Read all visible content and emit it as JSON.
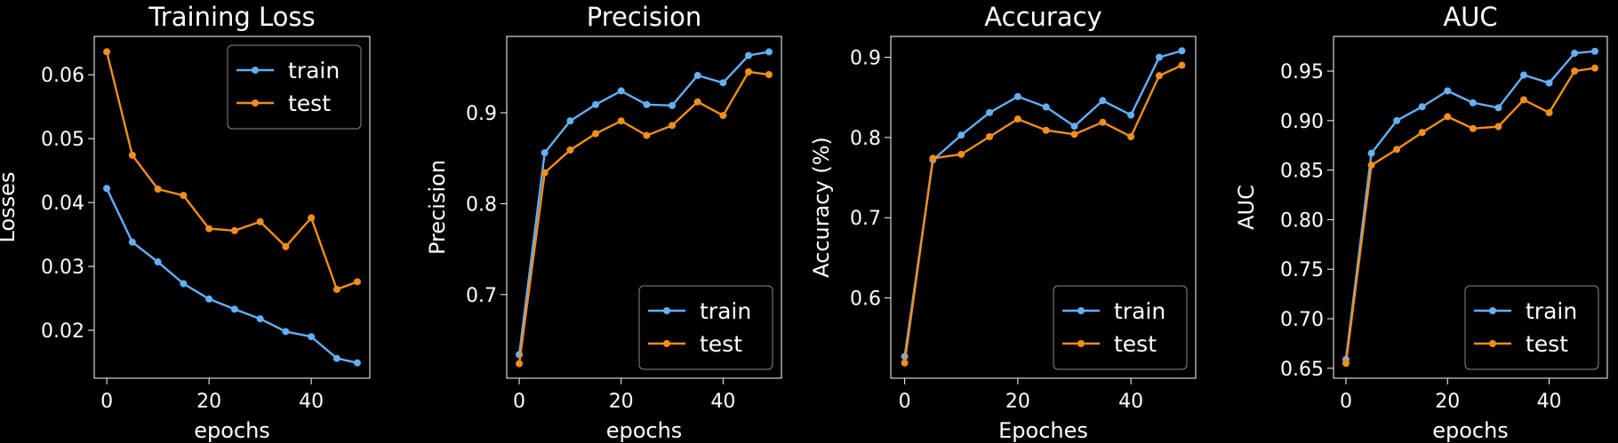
{
  "chart_data": [
    {
      "type": "line",
      "title": "Training Loss",
      "xlabel": "epochs",
      "ylabel": "Losses",
      "x": [
        0,
        5,
        10,
        15,
        20,
        25,
        30,
        35,
        40,
        45,
        49
      ],
      "series": [
        {
          "name": "train",
          "color": "#62b0f6",
          "values": [
            0.0422,
            0.0338,
            0.0307,
            0.0273,
            0.0249,
            0.0233,
            0.0218,
            0.0198,
            0.019,
            0.0156,
            0.0149
          ]
        },
        {
          "name": "test",
          "color": "#f28e1c",
          "values": [
            0.0636,
            0.0474,
            0.0421,
            0.0411,
            0.0359,
            0.0356,
            0.037,
            0.0331,
            0.0376,
            0.0264,
            0.0276
          ]
        }
      ],
      "xlim": [
        -2.45,
        51.45
      ],
      "ylim": [
        0.0125,
        0.066
      ],
      "xticks": [
        0,
        20,
        40
      ],
      "yticks": [
        0.02,
        0.03,
        0.04,
        0.05,
        0.06
      ],
      "legend": "upper right"
    },
    {
      "type": "line",
      "title": "Precision",
      "xlabel": "epochs",
      "ylabel": "Precision",
      "x": [
        0,
        5,
        10,
        15,
        20,
        25,
        30,
        35,
        40,
        45,
        49
      ],
      "series": [
        {
          "name": "train",
          "color": "#62b0f6",
          "values": [
            0.634,
            0.856,
            0.891,
            0.909,
            0.924,
            0.909,
            0.908,
            0.941,
            0.933,
            0.963,
            0.967
          ]
        },
        {
          "name": "test",
          "color": "#f28e1c",
          "values": [
            0.624,
            0.834,
            0.859,
            0.877,
            0.891,
            0.875,
            0.886,
            0.912,
            0.897,
            0.945,
            0.942
          ]
        }
      ],
      "xlim": [
        -2.45,
        51.45
      ],
      "ylim": [
        0.608,
        0.984
      ],
      "xticks": [
        0,
        20,
        40
      ],
      "yticks": [
        0.7,
        0.8,
        0.9
      ],
      "legend": "lower right"
    },
    {
      "type": "line",
      "title": "Accuracy",
      "xlabel": "Epoches",
      "ylabel": "Accuracy (%)",
      "x": [
        0,
        5,
        10,
        15,
        20,
        25,
        30,
        35,
        40,
        45,
        49
      ],
      "series": [
        {
          "name": "train",
          "color": "#62b0f6",
          "values": [
            0.527,
            0.772,
            0.803,
            0.831,
            0.851,
            0.838,
            0.814,
            0.846,
            0.828,
            0.9,
            0.908
          ]
        },
        {
          "name": "test",
          "color": "#f28e1c",
          "values": [
            0.519,
            0.774,
            0.779,
            0.801,
            0.823,
            0.809,
            0.804,
            0.819,
            0.801,
            0.877,
            0.89
          ]
        }
      ],
      "xlim": [
        -2.45,
        51.45
      ],
      "ylim": [
        0.5,
        0.926
      ],
      "xticks": [
        0,
        20,
        40
      ],
      "yticks": [
        0.6,
        0.7,
        0.8,
        0.9
      ],
      "legend": "lower right"
    },
    {
      "type": "line",
      "title": "AUC",
      "xlabel": "epochs",
      "ylabel": "AUC",
      "x": [
        0,
        5,
        10,
        15,
        20,
        25,
        30,
        35,
        40,
        45,
        49
      ],
      "series": [
        {
          "name": "train",
          "color": "#62b0f6",
          "values": [
            0.659,
            0.867,
            0.9,
            0.914,
            0.93,
            0.918,
            0.913,
            0.946,
            0.938,
            0.968,
            0.97
          ]
        },
        {
          "name": "test",
          "color": "#f28e1c",
          "values": [
            0.655,
            0.855,
            0.871,
            0.888,
            0.904,
            0.892,
            0.894,
            0.921,
            0.908,
            0.95,
            0.953
          ]
        }
      ],
      "xlim": [
        -2.45,
        51.45
      ],
      "ylim": [
        0.64,
        0.985
      ],
      "xticks": [
        0,
        20,
        40
      ],
      "yticks": [
        0.65,
        {
          "value": 0.7,
          "label": "0.70"
        },
        0.75,
        {
          "value": 0.8,
          "label": "0.80"
        },
        0.85,
        {
          "value": 0.9,
          "label": "0.90"
        },
        0.95
      ],
      "legend": "lower right"
    }
  ]
}
